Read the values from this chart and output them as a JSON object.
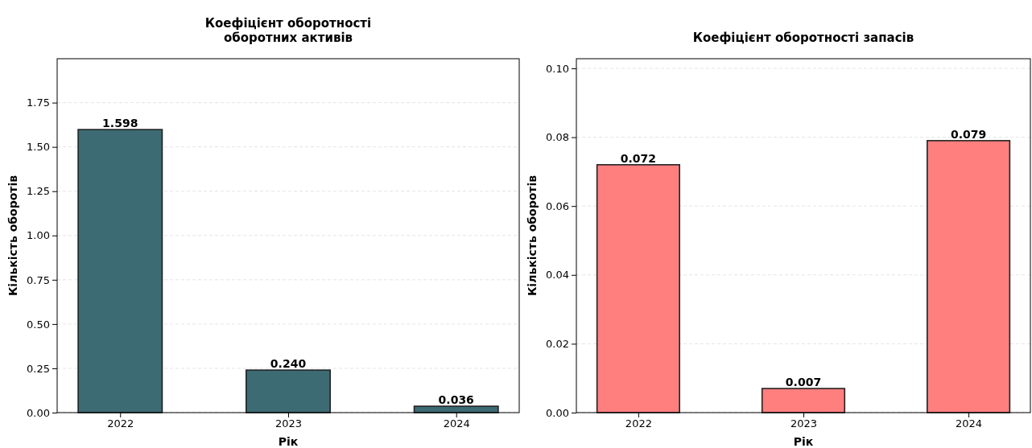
{
  "chart_data": [
    {
      "type": "bar",
      "title": "Коефіцієнт оборотності\nоборотних активів",
      "xlabel": "Рік",
      "ylabel": "Кількість оборотів",
      "categories": [
        "2022",
        "2023",
        "2024"
      ],
      "values": [
        1.598,
        0.24,
        0.036
      ],
      "value_labels": [
        "1.598",
        "0.240",
        "0.036"
      ],
      "color": "#3d6b73",
      "grid": "y",
      "ylim": [
        0,
        1.998
      ],
      "yticks": [
        {
          "value": 0,
          "label": "0.00"
        },
        0.25,
        {
          "value": 0.5,
          "label": "0.50"
        },
        0.75,
        {
          "value": 1,
          "label": "1.00"
        },
        1.25,
        {
          "value": 1.5,
          "label": "1.50"
        },
        1.75
      ]
    },
    {
      "type": "bar",
      "title": "Коефіцієнт оборотності запасів",
      "xlabel": "Рік",
      "ylabel": "Кількість оборотів",
      "categories": [
        "2022",
        "2023",
        "2024"
      ],
      "values": [
        0.072,
        0.007,
        0.079
      ],
      "color": "#ff7f7f",
      "data_labels": true,
      "grid": "y",
      "ylim": [
        0,
        0.1028
      ],
      "yticks": [
        {
          "value": 0,
          "label": "0.00"
        },
        0.02,
        0.04,
        0.06,
        0.08,
        {
          "value": 0.1,
          "label": "0.10"
        }
      ]
    }
  ]
}
